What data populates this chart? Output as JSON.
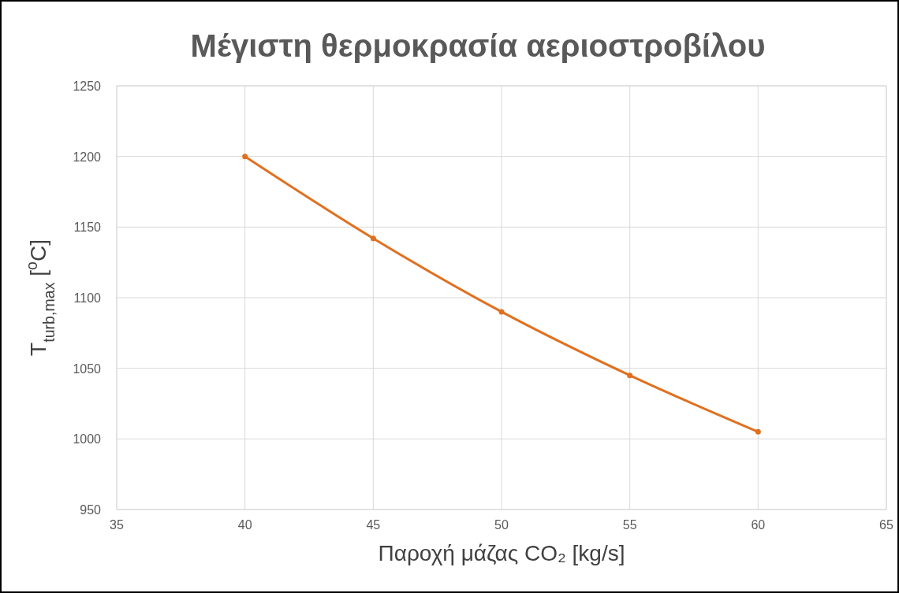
{
  "chart_data": {
    "type": "line",
    "title": "Μέγιστη θερμοκρασία αεριοστροβίλου",
    "xlabel": "Παροχή μάζας CO₂ [kg/s]",
    "ylabel": "T$_{turb,max}$ [$^{o}$C]",
    "x": [
      40,
      45,
      50,
      55,
      60
    ],
    "series": [
      {
        "color": "#e07020",
        "values": [
          1200,
          1142,
          1090,
          1045,
          1005
        ]
      }
    ],
    "xlim": [
      35,
      65
    ],
    "xticks": [
      35,
      40,
      45,
      50,
      55,
      60,
      65
    ],
    "ylim": [
      950,
      1250
    ],
    "yticks": [
      950,
      1000,
      1050,
      1100,
      1150,
      1200,
      1250
    ],
    "grid": true,
    "marker": "circle",
    "line_style": "solid"
  }
}
